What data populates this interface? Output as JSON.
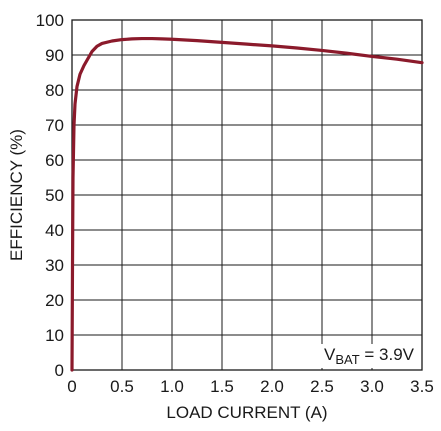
{
  "chart_data": {
    "type": "line",
    "title": "",
    "xlabel": "LOAD CURRENT (A)",
    "ylabel": "EFFICIENCY (%)",
    "xlim": [
      0,
      3.5
    ],
    "ylim": [
      0,
      100
    ],
    "x_ticks": [
      "0",
      "0.5",
      "1.0",
      "1.5",
      "2.0",
      "2.5",
      "3.0",
      "3.5"
    ],
    "x_tick_values": [
      0,
      0.5,
      1.0,
      1.5,
      2.0,
      2.5,
      3.0,
      3.5
    ],
    "y_ticks": [
      "0",
      "10",
      "20",
      "30",
      "40",
      "50",
      "60",
      "70",
      "80",
      "90",
      "100"
    ],
    "y_tick_values": [
      0,
      10,
      20,
      30,
      40,
      50,
      60,
      70,
      80,
      90,
      100
    ],
    "grid": true,
    "annotation": {
      "main": "V",
      "subscript": "BAT",
      "rest": " = 3.9V",
      "position": "bottom-right"
    },
    "line_color": "#8b1a2b",
    "series": [
      {
        "points": [
          [
            0.0,
            0.0
          ],
          [
            0.005,
            30.0
          ],
          [
            0.01,
            55.0
          ],
          [
            0.02,
            70.0
          ],
          [
            0.03,
            76.0
          ],
          [
            0.05,
            81.0
          ],
          [
            0.08,
            84.5
          ],
          [
            0.12,
            87.0
          ],
          [
            0.16,
            89.0
          ],
          [
            0.2,
            91.0
          ],
          [
            0.25,
            92.5
          ],
          [
            0.3,
            93.3
          ],
          [
            0.4,
            94.0
          ],
          [
            0.5,
            94.4
          ],
          [
            0.6,
            94.6
          ],
          [
            0.7,
            94.7
          ],
          [
            0.8,
            94.7
          ],
          [
            0.9,
            94.6
          ],
          [
            1.0,
            94.5
          ],
          [
            1.25,
            94.1
          ],
          [
            1.5,
            93.6
          ],
          [
            1.75,
            93.1
          ],
          [
            2.0,
            92.6
          ],
          [
            2.25,
            92.0
          ],
          [
            2.5,
            91.3
          ],
          [
            2.75,
            90.5
          ],
          [
            3.0,
            89.6
          ],
          [
            3.25,
            88.8
          ],
          [
            3.5,
            87.8
          ]
        ]
      }
    ]
  }
}
